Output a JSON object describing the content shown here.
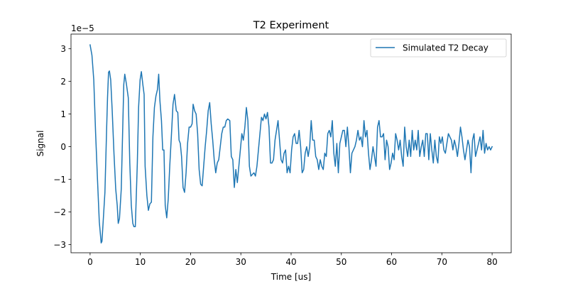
{
  "chart_data": {
    "type": "line",
    "title": "T2 Experiment",
    "xlabel": "Time [us]",
    "ylabel": "Signal",
    "y_offset_label": "1e−5",
    "xlim": [
      -3.8,
      83.8
    ],
    "ylim": [
      -3.25,
      3.45
    ],
    "x_ticks": [
      0,
      10,
      20,
      30,
      40,
      50,
      60,
      70,
      80
    ],
    "x_tick_labels": [
      "0",
      "10",
      "20",
      "30",
      "40",
      "50",
      "60",
      "70",
      "80"
    ],
    "y_ticks": [
      -3,
      -2,
      -1,
      0,
      1,
      2,
      3
    ],
    "y_tick_labels": [
      "−3",
      "−2",
      "−1",
      "0",
      "1",
      "2",
      "3"
    ],
    "grid": false,
    "legend_position": "top-right",
    "series": [
      {
        "name": "Simulated T2 Decay",
        "color": "#1f77b4",
        "points": [
          [
            0.0,
            3.12
          ],
          [
            0.37,
            2.8
          ],
          [
            0.73,
            2.05
          ],
          [
            1.1,
            0.4
          ],
          [
            1.47,
            -1.0
          ],
          [
            1.83,
            -2.3
          ],
          [
            2.2,
            -2.95
          ],
          [
            2.36,
            -2.9
          ],
          [
            2.6,
            -2.3
          ],
          [
            2.95,
            -1.4
          ],
          [
            3.3,
            0.6
          ],
          [
            3.47,
            1.5
          ],
          [
            3.67,
            2.28
          ],
          [
            3.85,
            2.32
          ],
          [
            4.1,
            2.05
          ],
          [
            4.4,
            1.1
          ],
          [
            4.75,
            -0.2
          ],
          [
            5.1,
            -1.3
          ],
          [
            5.4,
            -1.8
          ],
          [
            5.6,
            -2.35
          ],
          [
            5.85,
            -2.2
          ],
          [
            6.2,
            -1.3
          ],
          [
            6.5,
            0.6
          ],
          [
            6.7,
            1.9
          ],
          [
            6.9,
            2.22
          ],
          [
            7.2,
            1.95
          ],
          [
            7.6,
            1.5
          ],
          [
            7.9,
            -0.5
          ],
          [
            8.2,
            -1.8
          ],
          [
            8.5,
            -2.35
          ],
          [
            8.72,
            -2.45
          ],
          [
            9.0,
            -2.45
          ],
          [
            9.4,
            -0.5
          ],
          [
            9.65,
            1.2
          ],
          [
            9.95,
            2.05
          ],
          [
            10.2,
            2.3
          ],
          [
            10.5,
            1.9
          ],
          [
            10.75,
            1.6
          ],
          [
            10.95,
            -0.6
          ],
          [
            11.3,
            -1.5
          ],
          [
            11.6,
            -1.95
          ],
          [
            11.9,
            -1.75
          ],
          [
            12.2,
            -1.7
          ],
          [
            12.5,
            0.3
          ],
          [
            12.8,
            1.2
          ],
          [
            13.1,
            1.55
          ],
          [
            13.4,
            1.75
          ],
          [
            13.65,
            2.22
          ],
          [
            13.9,
            1.4
          ],
          [
            14.2,
            0.8
          ],
          [
            14.45,
            -0.1
          ],
          [
            14.7,
            -0.1
          ],
          [
            14.95,
            -1.8
          ],
          [
            15.25,
            -2.18
          ],
          [
            15.55,
            -1.6
          ],
          [
            15.85,
            -0.6
          ],
          [
            16.2,
            0.4
          ],
          [
            16.5,
            1.3
          ],
          [
            16.8,
            1.6
          ],
          [
            17.15,
            1.1
          ],
          [
            17.45,
            1.05
          ],
          [
            17.7,
            0.2
          ],
          [
            17.95,
            0.1
          ],
          [
            18.2,
            -0.3
          ],
          [
            18.5,
            -1.25
          ],
          [
            18.8,
            -1.4
          ],
          [
            19.1,
            -0.8
          ],
          [
            19.4,
            0.1
          ],
          [
            19.7,
            0.6
          ],
          [
            20.0,
            0.6
          ],
          [
            20.3,
            0.7
          ],
          [
            20.5,
            1.3
          ],
          [
            20.8,
            1.1
          ],
          [
            21.1,
            1.0
          ],
          [
            21.4,
            0.4
          ],
          [
            21.7,
            -0.7
          ],
          [
            22.0,
            -1.15
          ],
          [
            22.3,
            -1.2
          ],
          [
            22.6,
            -0.6
          ],
          [
            22.9,
            0.0
          ],
          [
            23.2,
            0.5
          ],
          [
            23.5,
            1.1
          ],
          [
            23.8,
            1.35
          ],
          [
            24.1,
            0.7
          ],
          [
            24.4,
            0.2
          ],
          [
            24.7,
            -0.4
          ],
          [
            25.0,
            -0.8
          ],
          [
            25.3,
            -0.5
          ],
          [
            25.6,
            -0.4
          ],
          [
            25.9,
            0.0
          ],
          [
            26.2,
            0.4
          ],
          [
            26.5,
            0.6
          ],
          [
            26.8,
            0.6
          ],
          [
            27.1,
            0.8
          ],
          [
            27.4,
            0.85
          ],
          [
            27.8,
            0.8
          ],
          [
            28.1,
            -0.3
          ],
          [
            28.4,
            -0.4
          ],
          [
            28.7,
            -1.25
          ],
          [
            29.0,
            -0.7
          ],
          [
            29.3,
            -1.1
          ],
          [
            29.6,
            -0.6
          ],
          [
            29.9,
            -0.1
          ],
          [
            30.2,
            0.4
          ],
          [
            30.5,
            0.2
          ],
          [
            30.8,
            0.6
          ],
          [
            31.1,
            1.2
          ],
          [
            31.4,
            0.8
          ],
          [
            31.7,
            -0.6
          ],
          [
            32.0,
            -0.9
          ],
          [
            32.3,
            -0.85
          ],
          [
            32.6,
            -0.8
          ],
          [
            32.9,
            -0.9
          ],
          [
            33.2,
            -0.6
          ],
          [
            33.5,
            -0.1
          ],
          [
            33.8,
            0.4
          ],
          [
            34.1,
            0.9
          ],
          [
            34.4,
            0.8
          ],
          [
            34.7,
            1.0
          ],
          [
            35.0,
            0.85
          ],
          [
            35.3,
            1.05
          ],
          [
            35.6,
            0.6
          ],
          [
            35.9,
            -0.5
          ],
          [
            36.2,
            -0.5
          ],
          [
            36.5,
            -0.4
          ],
          [
            36.8,
            0.2
          ],
          [
            37.1,
            0.5
          ],
          [
            37.4,
            0.8
          ],
          [
            37.7,
            0.2
          ],
          [
            38.0,
            -0.4
          ],
          [
            38.3,
            -0.5
          ],
          [
            38.6,
            -0.2
          ],
          [
            38.9,
            -0.1
          ],
          [
            39.2,
            -0.8
          ],
          [
            39.5,
            -0.6
          ],
          [
            39.8,
            -0.8
          ],
          [
            40.1,
            -0.1
          ],
          [
            40.4,
            0.3
          ],
          [
            40.7,
            0.4
          ],
          [
            41.0,
            0.1
          ],
          [
            41.3,
            0.1
          ],
          [
            41.6,
            0.5
          ],
          [
            41.9,
            0.0
          ],
          [
            42.2,
            -0.8
          ],
          [
            42.5,
            -0.7
          ],
          [
            42.8,
            -0.2
          ],
          [
            43.1,
            0.0
          ],
          [
            43.4,
            -0.3
          ],
          [
            43.7,
            0.0
          ],
          [
            44.0,
            0.8
          ],
          [
            44.3,
            0.2
          ],
          [
            44.6,
            0.2
          ],
          [
            44.9,
            -0.3
          ],
          [
            45.2,
            -0.4
          ],
          [
            45.5,
            -0.7
          ],
          [
            45.8,
            -0.4
          ],
          [
            46.1,
            -0.6
          ],
          [
            46.4,
            -0.7
          ],
          [
            46.7,
            -0.2
          ],
          [
            47.0,
            -0.3
          ],
          [
            47.3,
            0.4
          ],
          [
            47.6,
            0.5
          ],
          [
            47.9,
            0.3
          ],
          [
            48.2,
            0.8
          ],
          [
            48.5,
            -0.2
          ],
          [
            48.8,
            -0.6
          ],
          [
            49.1,
            0.1
          ],
          [
            49.4,
            -0.8
          ],
          [
            49.7,
            0.1
          ],
          [
            50.0,
            0.3
          ],
          [
            50.3,
            0.5
          ],
          [
            50.6,
            0.5
          ],
          [
            50.9,
            0.0
          ],
          [
            51.2,
            0.6
          ],
          [
            51.5,
            0.0
          ],
          [
            51.8,
            -0.8
          ],
          [
            52.1,
            -0.2
          ],
          [
            52.4,
            -0.1
          ],
          [
            52.7,
            0.0
          ],
          [
            53.0,
            0.2
          ],
          [
            53.3,
            0.5
          ],
          [
            53.6,
            0.2
          ],
          [
            53.9,
            0.3
          ],
          [
            54.2,
            0.0
          ],
          [
            54.5,
            0.8
          ],
          [
            54.8,
            0.3
          ],
          [
            55.1,
            0.5
          ],
          [
            55.4,
            -0.2
          ],
          [
            55.7,
            -0.7
          ],
          [
            56.0,
            -0.4
          ],
          [
            56.3,
            0.0
          ],
          [
            56.6,
            -0.3
          ],
          [
            56.9,
            -0.6
          ],
          [
            57.2,
            0.6
          ],
          [
            57.5,
            0.8
          ],
          [
            57.8,
            0.3
          ],
          [
            58.1,
            0.3
          ],
          [
            58.4,
            0.4
          ],
          [
            58.7,
            -0.4
          ],
          [
            59.0,
            0.2
          ],
          [
            59.3,
            0.0
          ],
          [
            59.6,
            -0.7
          ],
          [
            59.9,
            -0.5
          ],
          [
            60.2,
            -0.2
          ],
          [
            60.5,
            -0.4
          ],
          [
            60.8,
            0.4
          ],
          [
            61.1,
            0.2
          ],
          [
            61.4,
            -0.1
          ],
          [
            61.7,
            0.2
          ],
          [
            62.0,
            -0.3
          ],
          [
            62.3,
            -0.6
          ],
          [
            62.6,
            0.6
          ],
          [
            62.9,
            0.0
          ],
          [
            63.2,
            -0.3
          ],
          [
            63.5,
            0.2
          ],
          [
            63.8,
            -0.3
          ],
          [
            64.1,
            0.5
          ],
          [
            64.4,
            -0.1
          ],
          [
            64.7,
            0.2
          ],
          [
            65.0,
            -0.1
          ],
          [
            65.3,
            0.5
          ],
          [
            65.6,
            -0.3
          ],
          [
            65.9,
            0.0
          ],
          [
            66.2,
            0.2
          ],
          [
            66.5,
            -0.3
          ],
          [
            66.8,
            0.4
          ],
          [
            67.1,
            0.4
          ],
          [
            67.4,
            -0.4
          ],
          [
            67.7,
            0.4
          ],
          [
            68.0,
            -0.1
          ],
          [
            68.3,
            -0.5
          ],
          [
            68.6,
            0.2
          ],
          [
            68.9,
            -0.3
          ],
          [
            69.2,
            -0.5
          ],
          [
            69.5,
            0.3
          ],
          [
            69.8,
            0.1
          ],
          [
            70.1,
            0.3
          ],
          [
            70.4,
            -0.1
          ],
          [
            70.7,
            -0.2
          ],
          [
            71.0,
            0.1
          ],
          [
            71.3,
            0.4
          ],
          [
            71.6,
            0.3
          ],
          [
            71.9,
            0.2
          ],
          [
            72.2,
            -0.1
          ],
          [
            72.5,
            0.2
          ],
          [
            72.8,
            0.0
          ],
          [
            73.1,
            -0.3
          ],
          [
            73.4,
            0.1
          ],
          [
            73.7,
            0.6
          ],
          [
            74.0,
            0.3
          ],
          [
            74.3,
            -0.1
          ],
          [
            74.6,
            -0.4
          ],
          [
            74.9,
            -0.1
          ],
          [
            75.2,
            0.2
          ],
          [
            75.5,
            0.0
          ],
          [
            75.8,
            -0.8
          ],
          [
            76.1,
            0.2
          ],
          [
            76.4,
            0.4
          ],
          [
            76.7,
            -0.3
          ],
          [
            77.0,
            -0.1
          ],
          [
            77.3,
            0.1
          ],
          [
            77.6,
            0.3
          ],
          [
            77.9,
            -0.1
          ],
          [
            78.2,
            0.5
          ],
          [
            78.5,
            -0.2
          ],
          [
            78.8,
            0.1
          ],
          [
            79.1,
            -0.1
          ],
          [
            79.4,
            0.0
          ],
          [
            79.7,
            -0.1
          ],
          [
            80.0,
            0.0
          ]
        ]
      }
    ]
  }
}
